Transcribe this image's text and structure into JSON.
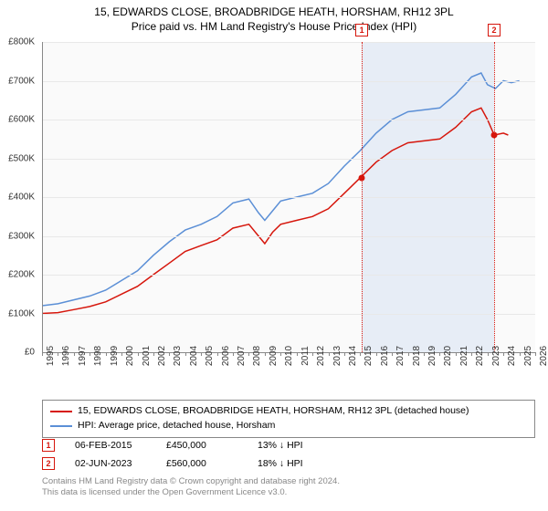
{
  "title": "15, EDWARDS CLOSE, BROADBRIDGE HEATH, HORSHAM, RH12 3PL",
  "subtitle": "Price paid vs. HM Land Registry's House Price Index (HPI)",
  "chart": {
    "type": "line",
    "background_color": "#fafafa",
    "grid_color": "#e8e8e8",
    "x": {
      "min": 1995,
      "max": 2026,
      "ticks": [
        1995,
        1996,
        1997,
        1998,
        1999,
        2000,
        2001,
        2002,
        2003,
        2004,
        2005,
        2006,
        2007,
        2008,
        2009,
        2010,
        2011,
        2012,
        2013,
        2014,
        2015,
        2016,
        2017,
        2018,
        2019,
        2020,
        2021,
        2022,
        2023,
        2024,
        2025,
        2026
      ]
    },
    "y": {
      "min": 0,
      "max": 800000,
      "ticks": [
        {
          "v": 0,
          "label": "£0"
        },
        {
          "v": 100000,
          "label": "£100K"
        },
        {
          "v": 200000,
          "label": "£200K"
        },
        {
          "v": 300000,
          "label": "£300K"
        },
        {
          "v": 400000,
          "label": "£400K"
        },
        {
          "v": 500000,
          "label": "£500K"
        },
        {
          "v": 600000,
          "label": "£600K"
        },
        {
          "v": 700000,
          "label": "£700K"
        },
        {
          "v": 800000,
          "label": "£800K"
        }
      ]
    },
    "shaded_region": {
      "from": 2015.1,
      "to": 2023.42
    },
    "series": [
      {
        "name": "price_paid",
        "color": "#d6160c",
        "width": 1.5,
        "data": [
          [
            1995,
            100000
          ],
          [
            1996,
            102000
          ],
          [
            1997,
            110000
          ],
          [
            1998,
            118000
          ],
          [
            1999,
            130000
          ],
          [
            2000,
            150000
          ],
          [
            2001,
            170000
          ],
          [
            2002,
            200000
          ],
          [
            2003,
            230000
          ],
          [
            2004,
            260000
          ],
          [
            2005,
            275000
          ],
          [
            2006,
            290000
          ],
          [
            2007,
            320000
          ],
          [
            2008,
            330000
          ],
          [
            2008.6,
            300000
          ],
          [
            2009,
            280000
          ],
          [
            2009.5,
            310000
          ],
          [
            2010,
            330000
          ],
          [
            2011,
            340000
          ],
          [
            2012,
            350000
          ],
          [
            2013,
            370000
          ],
          [
            2014,
            410000
          ],
          [
            2015,
            450000
          ],
          [
            2016,
            490000
          ],
          [
            2017,
            520000
          ],
          [
            2018,
            540000
          ],
          [
            2019,
            545000
          ],
          [
            2020,
            550000
          ],
          [
            2021,
            580000
          ],
          [
            2022,
            620000
          ],
          [
            2022.6,
            630000
          ],
          [
            2023,
            600000
          ],
          [
            2023.42,
            560000
          ],
          [
            2024,
            565000
          ],
          [
            2024.3,
            560000
          ]
        ]
      },
      {
        "name": "hpi",
        "color": "#5b8fd6",
        "width": 1.5,
        "data": [
          [
            1995,
            120000
          ],
          [
            1996,
            125000
          ],
          [
            1997,
            135000
          ],
          [
            1998,
            145000
          ],
          [
            1999,
            160000
          ],
          [
            2000,
            185000
          ],
          [
            2001,
            210000
          ],
          [
            2002,
            250000
          ],
          [
            2003,
            285000
          ],
          [
            2004,
            315000
          ],
          [
            2005,
            330000
          ],
          [
            2006,
            350000
          ],
          [
            2007,
            385000
          ],
          [
            2008,
            395000
          ],
          [
            2008.6,
            360000
          ],
          [
            2009,
            340000
          ],
          [
            2009.5,
            365000
          ],
          [
            2010,
            390000
          ],
          [
            2011,
            400000
          ],
          [
            2012,
            410000
          ],
          [
            2013,
            435000
          ],
          [
            2014,
            480000
          ],
          [
            2015,
            520000
          ],
          [
            2016,
            565000
          ],
          [
            2017,
            600000
          ],
          [
            2018,
            620000
          ],
          [
            2019,
            625000
          ],
          [
            2020,
            630000
          ],
          [
            2021,
            665000
          ],
          [
            2022,
            710000
          ],
          [
            2022.6,
            720000
          ],
          [
            2023,
            690000
          ],
          [
            2023.5,
            680000
          ],
          [
            2024,
            700000
          ],
          [
            2024.5,
            695000
          ],
          [
            2025,
            700000
          ]
        ]
      }
    ],
    "markers": [
      {
        "n": "1",
        "x": 2015.1,
        "color": "#d6160c",
        "point_y": 450000
      },
      {
        "n": "2",
        "x": 2023.42,
        "color": "#d6160c",
        "point_y": 560000
      }
    ]
  },
  "legend": {
    "items": [
      {
        "color": "#d6160c",
        "label": "15, EDWARDS CLOSE, BROADBRIDGE HEATH, HORSHAM, RH12 3PL (detached house)"
      },
      {
        "color": "#5b8fd6",
        "label": "HPI: Average price, detached house, Horsham"
      }
    ]
  },
  "events": [
    {
      "n": "1",
      "color": "#d6160c",
      "date": "06-FEB-2015",
      "price": "£450,000",
      "delta": "13% ↓ HPI"
    },
    {
      "n": "2",
      "color": "#d6160c",
      "date": "02-JUN-2023",
      "price": "£560,000",
      "delta": "18% ↓ HPI"
    }
  ],
  "footer": {
    "line1": "Contains HM Land Registry data © Crown copyright and database right 2024.",
    "line2": "This data is licensed under the Open Government Licence v3.0."
  }
}
